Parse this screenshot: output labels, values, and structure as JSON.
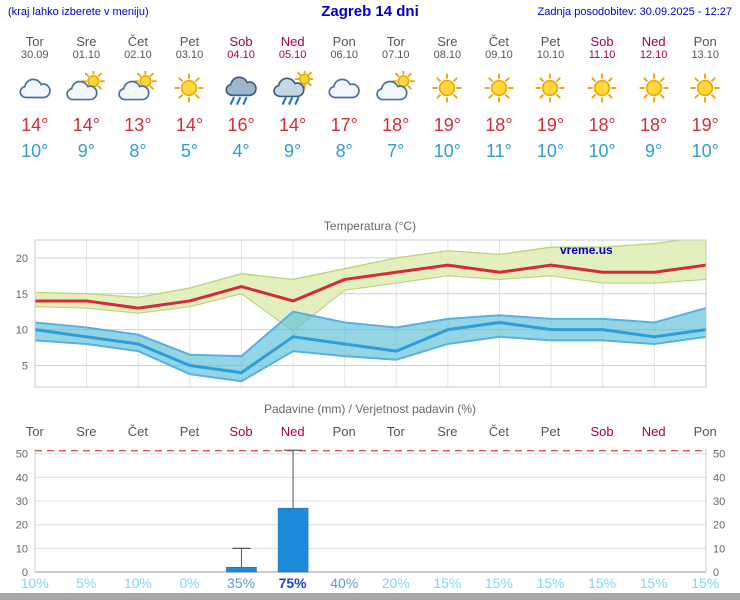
{
  "header": {
    "hint": "(kraj lahko izberete v meniju)",
    "title": "Zagreb 14 dni",
    "updated": "Zadnja posodobitev: 30.09.2025 - 12:27"
  },
  "colors": {
    "tmax_line": "#d42b36",
    "tmin_line": "#2d9ddb",
    "tmax_band": "#e3f0bd",
    "tmin_band": "rgba(90,190,215,0.65)",
    "weekend": "#a3004f",
    "weekday": "#555555",
    "header_blue": "#0000cc",
    "bar": "#1e8ada",
    "watermark_blue": "#0000c3"
  },
  "days": [
    {
      "name": "Tor",
      "date": "30.09",
      "icon": "cloudy",
      "weekend": false,
      "tmax": "14°",
      "tmin": "10°",
      "prob": "10%"
    },
    {
      "name": "Sre",
      "date": "01.10",
      "icon": "partly",
      "weekend": false,
      "tmax": "14°",
      "tmin": "9°",
      "prob": "5%"
    },
    {
      "name": "Čet",
      "date": "02.10",
      "icon": "partly",
      "weekend": false,
      "tmax": "13°",
      "tmin": "8°",
      "prob": "10%"
    },
    {
      "name": "Pet",
      "date": "03.10",
      "icon": "sunny",
      "weekend": false,
      "tmax": "14°",
      "tmin": "5°",
      "prob": "0%"
    },
    {
      "name": "Sob",
      "date": "04.10",
      "icon": "rain",
      "weekend": true,
      "tmax": "16°",
      "tmin": "4°",
      "prob": "35%"
    },
    {
      "name": "Ned",
      "date": "05.10",
      "icon": "rain-sun",
      "weekend": true,
      "tmax": "14°",
      "tmin": "9°",
      "prob": "75%"
    },
    {
      "name": "Pon",
      "date": "06.10",
      "icon": "cloudy",
      "weekend": false,
      "tmax": "17°",
      "tmin": "8°",
      "prob": "40%"
    },
    {
      "name": "Tor",
      "date": "07.10",
      "icon": "partly",
      "weekend": false,
      "tmax": "18°",
      "tmin": "7°",
      "prob": "20%"
    },
    {
      "name": "Sre",
      "date": "08.10",
      "icon": "sunny",
      "weekend": false,
      "tmax": "19°",
      "tmin": "10°",
      "prob": "15%"
    },
    {
      "name": "Čet",
      "date": "09.10",
      "icon": "sunny",
      "weekend": false,
      "tmax": "18°",
      "tmin": "11°",
      "prob": "15%"
    },
    {
      "name": "Pet",
      "date": "10.10",
      "icon": "sunny",
      "weekend": false,
      "tmax": "19°",
      "tmin": "10°",
      "prob": "15%"
    },
    {
      "name": "Sob",
      "date": "11.10",
      "icon": "sunny",
      "weekend": true,
      "tmax": "18°",
      "tmin": "10°",
      "prob": "15%"
    },
    {
      "name": "Ned",
      "date": "12.10",
      "icon": "sunny",
      "weekend": true,
      "tmax": "18°",
      "tmin": "9°",
      "prob": "15%"
    },
    {
      "name": "Pon",
      "date": "13.10",
      "icon": "sunny",
      "weekend": false,
      "tmax": "19°",
      "tmin": "10°",
      "prob": "15%"
    }
  ],
  "chart_data": [
    {
      "type": "line",
      "title": "Temperatura (°C)",
      "watermark": "vreme.us",
      "x_labels": [
        "Tor 30.09",
        "Sre 01.10",
        "Čet 02.10",
        "Pet 03.10",
        "Sob 04.10",
        "Ned 05.10",
        "Pon 06.10",
        "Tor 07.10",
        "Sre 08.10",
        "Čet 09.10",
        "Pet 10.10",
        "Sob 11.10",
        "Ned 12.10",
        "Pon 13.10"
      ],
      "ylim": [
        2,
        22.5
      ],
      "yticks": [
        5,
        10,
        15,
        20
      ],
      "series": [
        {
          "name": "tmax",
          "values": [
            14,
            14,
            13,
            14,
            16,
            14,
            17,
            18,
            19,
            18,
            19,
            18,
            18,
            19
          ]
        },
        {
          "name": "tmax_hi",
          "values": [
            15.2,
            15,
            14.5,
            15.8,
            17.8,
            17,
            18.5,
            20,
            21,
            20.5,
            21.5,
            21.5,
            22,
            23
          ]
        },
        {
          "name": "tmax_lo",
          "values": [
            13.2,
            13,
            12.3,
            13.2,
            15,
            9.8,
            15.5,
            16.5,
            17.5,
            17,
            17.5,
            16.5,
            16.5,
            17
          ]
        },
        {
          "name": "tmin",
          "values": [
            10,
            9,
            8,
            5,
            4,
            9,
            8,
            7,
            10,
            11,
            10,
            10,
            9,
            10
          ]
        },
        {
          "name": "tmin_hi",
          "values": [
            11,
            10.3,
            9.3,
            6.5,
            6.3,
            12.5,
            11,
            10.3,
            11.5,
            12,
            11.5,
            11.5,
            11,
            13
          ]
        },
        {
          "name": "tmin_lo",
          "values": [
            8.5,
            8,
            7,
            3.8,
            2.8,
            7,
            6.3,
            5.8,
            8,
            9,
            8.5,
            8.5,
            8,
            9
          ]
        }
      ]
    },
    {
      "type": "bar",
      "title": "Padavine (mm) / Verjetnost padavin (%)",
      "categories": [
        "Tor",
        "Sre",
        "Čet",
        "Pet",
        "Sob",
        "Ned",
        "Pon",
        "Tor",
        "Sre",
        "Čet",
        "Pet",
        "Sob",
        "Ned",
        "Pon"
      ],
      "precip_mm": [
        0,
        0,
        0,
        0,
        2,
        27,
        0,
        0,
        0,
        0,
        0,
        0,
        0,
        0
      ],
      "whisker_max_mm": [
        0,
        0,
        0,
        0,
        10,
        51.5,
        0,
        0,
        0,
        0,
        0,
        0,
        0,
        0
      ],
      "probability_pct": [
        10,
        5,
        10,
        0,
        35,
        75,
        40,
        20,
        15,
        15,
        15,
        15,
        15,
        15
      ],
      "ylim": [
        0,
        52
      ],
      "yticks": [
        0,
        10,
        20,
        30,
        40,
        50
      ],
      "overflow_line": 51.3
    }
  ]
}
